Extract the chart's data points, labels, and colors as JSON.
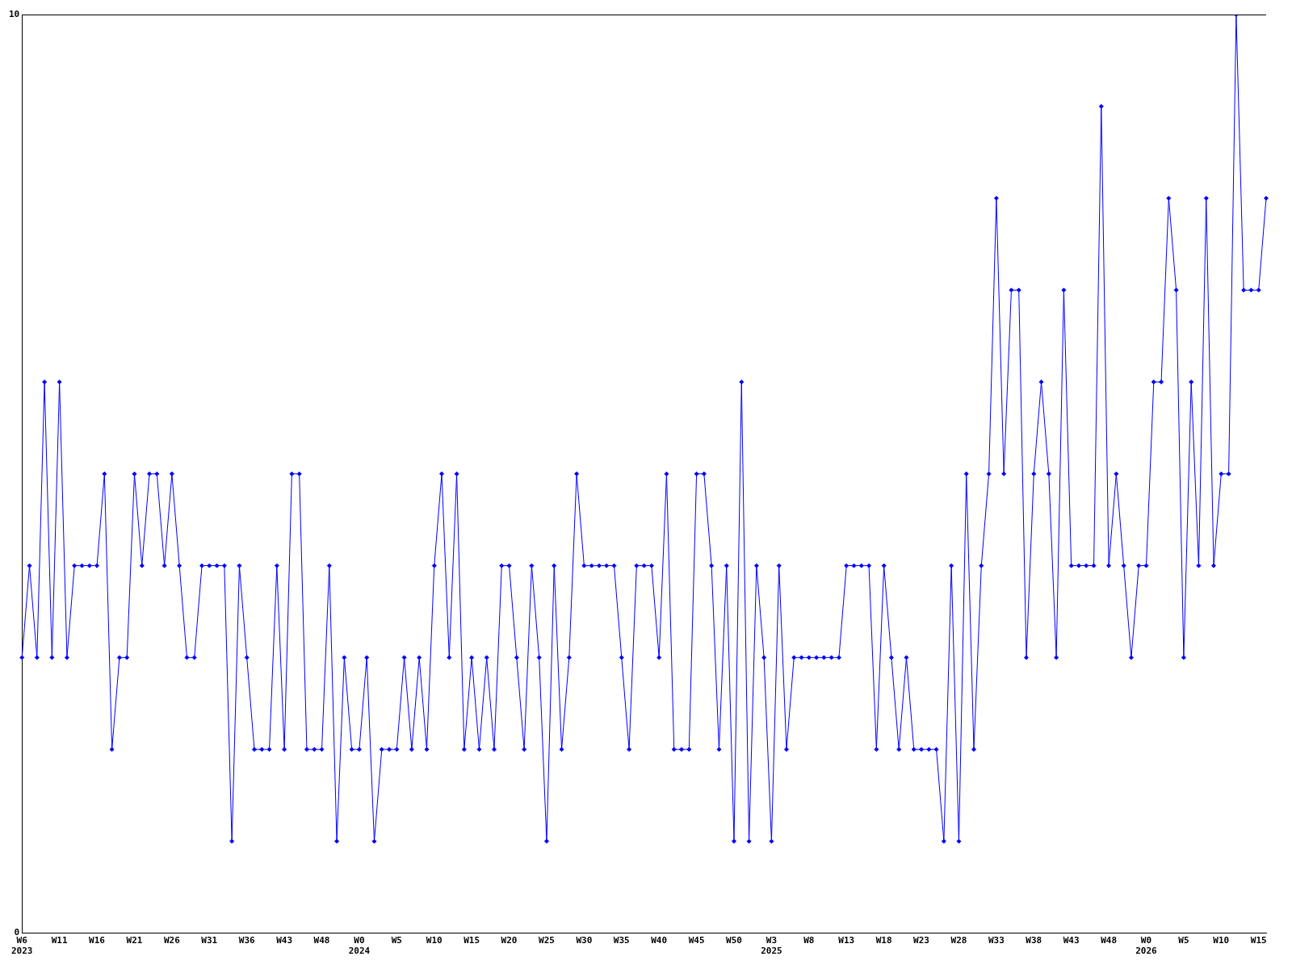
{
  "chart_data": {
    "type": "line",
    "categories": [
      "W6\n2023",
      null,
      null,
      null,
      null,
      "W11",
      null,
      null,
      null,
      null,
      "W16",
      null,
      null,
      null,
      null,
      "W21",
      null,
      null,
      null,
      null,
      "W26",
      null,
      null,
      null,
      null,
      "W31",
      null,
      null,
      null,
      null,
      "W36",
      null,
      null,
      null,
      null,
      "W43",
      null,
      null,
      null,
      null,
      "W48",
      null,
      null,
      null,
      null,
      "W0\n2024",
      null,
      null,
      null,
      null,
      "W5",
      null,
      null,
      null,
      null,
      "W10",
      null,
      null,
      null,
      null,
      "W15",
      null,
      null,
      null,
      null,
      "W20",
      null,
      null,
      null,
      null,
      "W25",
      null,
      null,
      null,
      null,
      "W30",
      null,
      null,
      null,
      null,
      "W35",
      null,
      null,
      null,
      null,
      "W40",
      null,
      null,
      null,
      null,
      "W45",
      null,
      null,
      null,
      null,
      "W50",
      null,
      null,
      null,
      null,
      "W3\n2025",
      null,
      null,
      null,
      null,
      "W8",
      null,
      null,
      null,
      null,
      "W13",
      null,
      null,
      null,
      null,
      "W18",
      null,
      null,
      null,
      null,
      "W23",
      null,
      null,
      null,
      null,
      "W28",
      null,
      null,
      null,
      null,
      "W33",
      null,
      null,
      null,
      null,
      "W38",
      null,
      null,
      null,
      null,
      "W43",
      null,
      null,
      null,
      null,
      "W48",
      null,
      null,
      null,
      null,
      "W0\n2026",
      null,
      null,
      null,
      null,
      "W5",
      null,
      null,
      null,
      null,
      "W10",
      null,
      null,
      null,
      null,
      "W15",
      null
    ],
    "series": [
      {
        "color": "#0000ff",
        "values": [
          3,
          4,
          3,
          6,
          3,
          6,
          3,
          4,
          4,
          4,
          4,
          5,
          2,
          3,
          3,
          5,
          4,
          5,
          5,
          4,
          5,
          4,
          3,
          3,
          4,
          4,
          4,
          4,
          1,
          4,
          3,
          2,
          2,
          2,
          4,
          2,
          5,
          5,
          2,
          2,
          2,
          4,
          1,
          3,
          2,
          2,
          3,
          1,
          2,
          2,
          2,
          3,
          2,
          3,
          2,
          4,
          5,
          3,
          5,
          2,
          3,
          2,
          3,
          2,
          4,
          4,
          3,
          2,
          4,
          3,
          1,
          4,
          2,
          3,
          5,
          4,
          4,
          4,
          4,
          4,
          3,
          2,
          4,
          4,
          4,
          3,
          5,
          2,
          2,
          2,
          5,
          5,
          4,
          2,
          4,
          1,
          6,
          1,
          4,
          3,
          1,
          4,
          2,
          3,
          3,
          3,
          3,
          3,
          3,
          3,
          4,
          4,
          4,
          4,
          2,
          4,
          3,
          2,
          3,
          2,
          2,
          2,
          2,
          1,
          4,
          1,
          5,
          2,
          4,
          5,
          8,
          5,
          7,
          7,
          3,
          5,
          6,
          5,
          3,
          7,
          4,
          4,
          4,
          4,
          9,
          4,
          5,
          4,
          3,
          4,
          4,
          6,
          6,
          8,
          7,
          3,
          6,
          4,
          8,
          4,
          5,
          5,
          10,
          7,
          7,
          7,
          8
        ]
      }
    ],
    "ylim": [
      0,
      10
    ],
    "yticks": [
      0,
      10
    ],
    "grid": false,
    "legend": false,
    "marker": "diamond",
    "line_style": "solid"
  }
}
